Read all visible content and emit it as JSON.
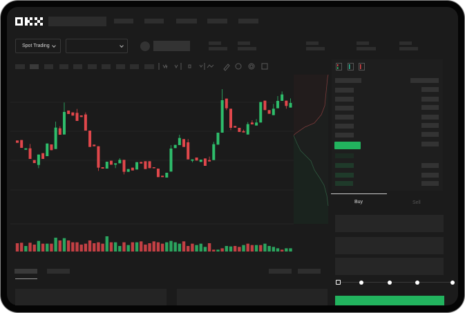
{
  "brand": {
    "logo": "OKX"
  },
  "header": {
    "market_selector": "Spot Trading",
    "pair_selector": "",
    "nav_items": 5,
    "stats": 5
  },
  "toolbar": {
    "icons": [
      "indicator-icon",
      "indicator-icon",
      "crosshair-icon",
      "line-icon",
      "ruler-icon",
      "camera-icon",
      "settings-icon",
      "fullscreen-icon"
    ]
  },
  "orderbook": {
    "view_icons": [
      "orderbook-both-icon",
      "orderbook-bids-icon",
      "orderbook-asks-icon"
    ]
  },
  "trade": {
    "tabs": [
      "Buy",
      "Sell"
    ],
    "active_tab": "Buy",
    "slider_percent": 0,
    "slider_stops": [
      0,
      25,
      50,
      75,
      100
    ]
  },
  "colors": {
    "up": "#2ebd6b",
    "down": "#e0474b",
    "background": "#1b1b1b",
    "buy_button": "#22b35e"
  },
  "chart_data": {
    "type": "candlestick",
    "title": "",
    "xlabel": "",
    "ylabel": "",
    "candles": [
      [
        50,
        50,
        49,
        49
      ],
      [
        50.2,
        50.2,
        46.8,
        46.8
      ],
      [
        46,
        46.6,
        46,
        46.6
      ],
      [
        46.6,
        48.5,
        42,
        42
      ],
      [
        41.5,
        41.5,
        40.2,
        40.2
      ],
      [
        39.4,
        43.9,
        38,
        43.9
      ],
      [
        44.5,
        44.5,
        42,
        42
      ],
      [
        43.2,
        48.7,
        43.2,
        48.7
      ],
      [
        48.3,
        48.3,
        45.8,
        45.8
      ],
      [
        46.3,
        58.2,
        46.3,
        55.6
      ],
      [
        55.3,
        56.2,
        52.5,
        52.5
      ],
      [
        52.6,
        66.5,
        52.6,
        62.4
      ],
      [
        63,
        63,
        61.5,
        61.5
      ],
      [
        62.2,
        62.2,
        60.8,
        60.8
      ],
      [
        62,
        63.7,
        58.5,
        58.5
      ],
      [
        60.9,
        60.9,
        60.2,
        60.2
      ],
      [
        61.3,
        62.2,
        54.3,
        54.3
      ],
      [
        54.3,
        54.3,
        47.2,
        47.2
      ],
      [
        48.2,
        48.2,
        47.5,
        47.5
      ],
      [
        47.5,
        47.5,
        36.8,
        38.2
      ],
      [
        38.4,
        38.4,
        37.8,
        37.8
      ],
      [
        37.8,
        40.8,
        37.8,
        40.8
      ],
      [
        41.2,
        41.2,
        39.5,
        39.5
      ],
      [
        39.5,
        40.1,
        38,
        40.1
      ],
      [
        40.1,
        42.3,
        40.1,
        41.6
      ],
      [
        41.6,
        41.6,
        35.3,
        36.4
      ],
      [
        36.4,
        37.6,
        36.4,
        37.6
      ],
      [
        38.2,
        38.2,
        37,
        37
      ],
      [
        37.4,
        40.6,
        37.4,
        40.6
      ],
      [
        40.7,
        40.7,
        40,
        40
      ],
      [
        41,
        41,
        37.6,
        37.6
      ],
      [
        41,
        41,
        38,
        38
      ],
      [
        38.4,
        38.4,
        38,
        38
      ],
      [
        37.8,
        37.8,
        34.1,
        34.1
      ],
      [
        34.7,
        34.7,
        34.1,
        34.1
      ],
      [
        33.9,
        36,
        33.9,
        36
      ],
      [
        36.5,
        48,
        36.5,
        46.5
      ],
      [
        46.7,
        48.1,
        46.7,
        48.1
      ],
      [
        48,
        52.5,
        48,
        51.1
      ],
      [
        50.6,
        50.6,
        47.2,
        47.2
      ],
      [
        49.2,
        50.6,
        41.8,
        41.8
      ],
      [
        41.2,
        41.8,
        40.5,
        41.8
      ],
      [
        42.6,
        42.6,
        41.3,
        41.3
      ],
      [
        40.7,
        41.7,
        40.7,
        41.7
      ],
      [
        42.2,
        42.2,
        39,
        39
      ],
      [
        41.5,
        43,
        40.9,
        40.9
      ],
      [
        41.5,
        49.4,
        41.5,
        48.4
      ],
      [
        48.2,
        53.4,
        48.2,
        53.4
      ],
      [
        53.4,
        72.3,
        53.4,
        67.5
      ],
      [
        68.2,
        68.2,
        63.2,
        64
      ],
      [
        63.8,
        63.8,
        54.5,
        55.5
      ],
      [
        56.3,
        56.3,
        55.6,
        55.6
      ],
      [
        55.5,
        55.5,
        53.7,
        53.7
      ],
      [
        54.1,
        54.7,
        53.5,
        53.5
      ],
      [
        52.6,
        58,
        52.6,
        57.1
      ],
      [
        57.8,
        58.8,
        57,
        57
      ],
      [
        56.5,
        59.3,
        56.5,
        57.8
      ],
      [
        57.8,
        66.7,
        57.8,
        66.7
      ],
      [
        67.3,
        67.3,
        63.2,
        63.2
      ],
      [
        63.2,
        63.2,
        61.6,
        61.6
      ],
      [
        61,
        65.9,
        61,
        63.8
      ],
      [
        64,
        69.3,
        64,
        67.2
      ],
      [
        67.2,
        71.3,
        67.2,
        70
      ],
      [
        67.3,
        67.3,
        63.8,
        65
      ],
      [
        64.3,
        68.3,
        64.3,
        66.3
      ]
    ],
    "volume": [
      36,
      38,
      24,
      38,
      30,
      46,
      34,
      34,
      34,
      60,
      48,
      58,
      48,
      40,
      40,
      30,
      34,
      48,
      36,
      40,
      34,
      66,
      40,
      40,
      24,
      40,
      28,
      40,
      40,
      44,
      30,
      36,
      44,
      40,
      34,
      40,
      46,
      40,
      34,
      44,
      24,
      34,
      28,
      34,
      20,
      36,
      8,
      8,
      14,
      24,
      22,
      24,
      20,
      28,
      34,
      28,
      28,
      28,
      34,
      24,
      20,
      14,
      8,
      14,
      14
    ],
    "volume_up": [
      0,
      0,
      1,
      0,
      0,
      1,
      0,
      1,
      0,
      1,
      0,
      1,
      0,
      0,
      0,
      0,
      0,
      0,
      0,
      0,
      0,
      1,
      0,
      1,
      1,
      0,
      1,
      0,
      1,
      0,
      0,
      0,
      0,
      0,
      0,
      1,
      1,
      1,
      1,
      0,
      0,
      0,
      1,
      1,
      1,
      0,
      0,
      1,
      0,
      1,
      1,
      0,
      0,
      1,
      0,
      0,
      1,
      0,
      1,
      1,
      1,
      1,
      0,
      1,
      1
    ]
  }
}
